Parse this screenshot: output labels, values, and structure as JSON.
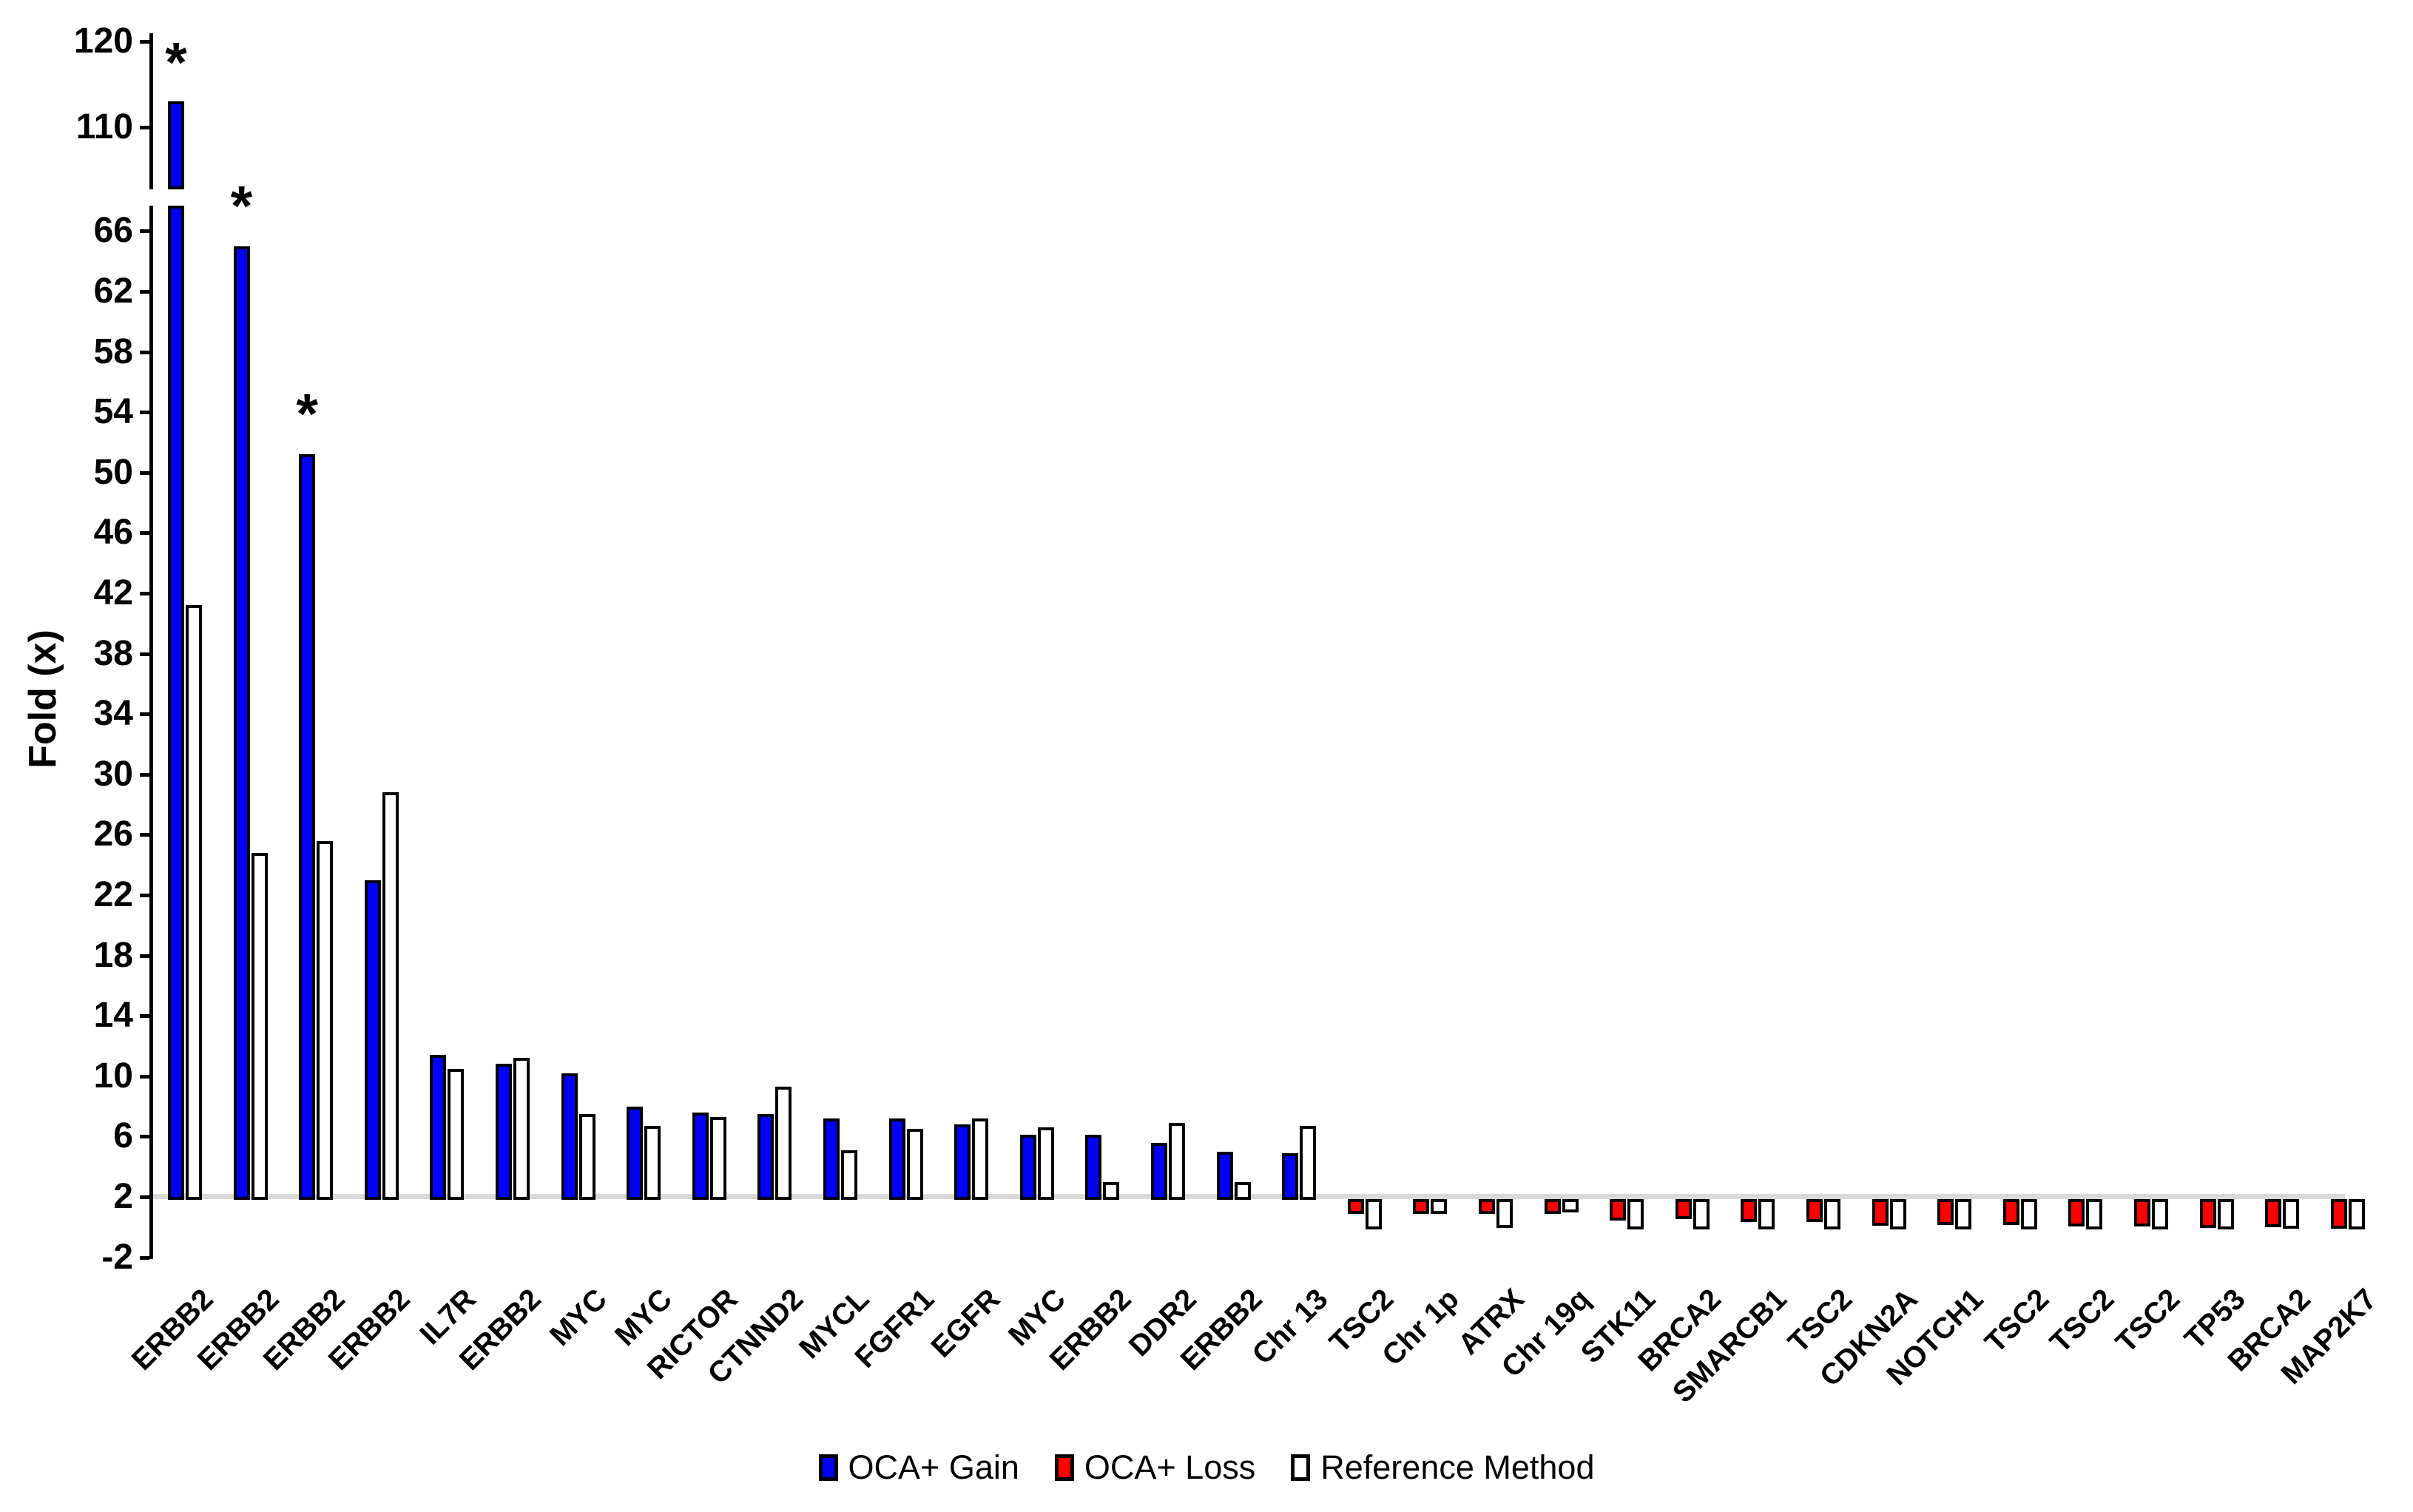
{
  "chart_data": {
    "type": "bar",
    "title": "",
    "xlabel": "",
    "ylabel": "Fold (x)",
    "bar_baseline_value": 2,
    "grid": false,
    "legend_position": "bottom-center",
    "yaxis": {
      "broken_axis": true,
      "upper_panel_range": [
        100,
        121
      ],
      "upper_ticks": [
        120,
        110
      ],
      "lower_panel_range": [
        -2,
        67
      ],
      "lower_ticks": [
        66,
        62,
        58,
        54,
        50,
        46,
        42,
        38,
        34,
        30,
        26,
        22,
        18,
        14,
        10,
        6,
        2,
        -2
      ]
    },
    "categories": [
      "ERBB2",
      "ERBB2",
      "ERBB2",
      "ERBB2",
      "IL7R",
      "ERBB2",
      "MYC",
      "MYC",
      "RICTOR",
      "CTNND2",
      "MYCL",
      "FGFR1",
      "EGFR",
      "MYC",
      "ERBB2",
      "DDR2",
      "ERBB2",
      "Chr 13",
      "TSC2",
      "Chr 1p",
      "ATRX",
      "Chr 19q",
      "STK11",
      "BRCA2",
      "SMARCB1",
      "TSC2",
      "CDKN2A",
      "NOTCH1",
      "TSC2",
      "TSC2",
      "TSC2",
      "TP53",
      "BRCA2",
      "MAP2K7"
    ],
    "series": [
      {
        "name": "OCA+ Gain",
        "color": "#0000FF",
        "values": [
          113,
          65,
          51.2,
          23,
          11.4,
          10.8,
          10.2,
          8.0,
          7.6,
          7.5,
          7.2,
          7.2,
          6.8,
          6.1,
          6.1,
          5.6,
          5.0,
          4.9,
          null,
          null,
          null,
          null,
          null,
          null,
          null,
          null,
          null,
          null,
          null,
          null,
          null,
          null,
          null,
          null
        ]
      },
      {
        "name": "OCA+ Loss",
        "color": "#FF0000",
        "values": [
          null,
          null,
          null,
          null,
          null,
          null,
          null,
          null,
          null,
          null,
          null,
          null,
          null,
          null,
          null,
          null,
          null,
          null,
          1.0,
          1.0,
          1.0,
          1.0,
          0.6,
          0.7,
          0.5,
          0.5,
          0.25,
          0.3,
          0.3,
          0.2,
          0.2,
          0.1,
          0.15,
          0.05
        ]
      },
      {
        "name": "Reference Method",
        "color": "#FFFFFF",
        "values": [
          41.2,
          24.8,
          25.6,
          28.8,
          10.5,
          11.2,
          7.5,
          6.7,
          7.3,
          9.3,
          5.1,
          6.5,
          7.2,
          6.6,
          3.0,
          6.9,
          3.0,
          6.7,
          0.0,
          1.0,
          0.1,
          1.1,
          0.0,
          0.0,
          0.0,
          0.0,
          0.0,
          0.0,
          0.0,
          0.0,
          0.0,
          0.0,
          0.05,
          0.0
        ]
      }
    ],
    "annotations": {
      "asterisk_symbol": "*",
      "asterisk_category_indexes": [
        0,
        1,
        2
      ]
    }
  },
  "legend": {
    "items": [
      {
        "label": "OCA+ Gain",
        "color": "#0000FF"
      },
      {
        "label": "OCA+ Loss",
        "color": "#FF0000"
      },
      {
        "label": "Reference Method",
        "color": "#FFFFFF"
      }
    ]
  },
  "colors": {
    "gain": "#0000FF",
    "loss": "#FF0000",
    "reference": "#FFFFFF",
    "baseline_gray": "#D9D9D9",
    "axis_black": "#000000"
  }
}
